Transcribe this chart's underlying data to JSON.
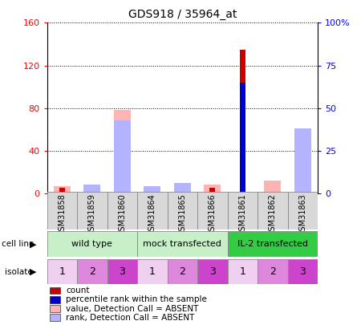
{
  "title": "GDS918 / 35964_at",
  "samples": [
    "GSM31858",
    "GSM31859",
    "GSM31860",
    "GSM31864",
    "GSM31865",
    "GSM31866",
    "GSM31861",
    "GSM31862",
    "GSM31863"
  ],
  "count_values": [
    5,
    0,
    0,
    0,
    0,
    5,
    135,
    0,
    0
  ],
  "percentile_values": [
    0,
    0,
    0,
    0,
    0,
    0,
    65,
    0,
    0
  ],
  "absent_value_values": [
    7,
    3,
    78,
    3,
    4,
    8,
    0,
    12,
    48
  ],
  "absent_rank_values": [
    0,
    5,
    43,
    4,
    6,
    0,
    0,
    0,
    38
  ],
  "cell_line_groups": [
    {
      "label": "wild type",
      "start": 0,
      "end": 3,
      "color": "#c8f0c8"
    },
    {
      "label": "mock transfected",
      "start": 3,
      "end": 6,
      "color": "#c8f0c8"
    },
    {
      "label": "IL-2 transfected",
      "start": 6,
      "end": 9,
      "color": "#33cc44"
    }
  ],
  "isolate_values": [
    "1",
    "2",
    "3",
    "1",
    "2",
    "3",
    "1",
    "2",
    "3"
  ],
  "isolate_colors": [
    "#f0d0f0",
    "#dd88dd",
    "#cc44cc",
    "#f0d0f0",
    "#dd88dd",
    "#cc44cc",
    "#f0d0f0",
    "#dd88dd",
    "#cc44cc"
  ],
  "ylim_left": [
    0,
    160
  ],
  "ylim_right": [
    0,
    100
  ],
  "yticks_left": [
    0,
    40,
    80,
    120,
    160
  ],
  "yticks_right": [
    0,
    25,
    50,
    75,
    100
  ],
  "yticklabels_right": [
    "0",
    "25",
    "50",
    "75",
    "100%"
  ],
  "count_color": "#cc0000",
  "percentile_color": "#0000cc",
  "absent_value_color": "#ffb3b3",
  "absent_rank_color": "#b3b3ff",
  "bg_color": "#ffffff",
  "legend_items": [
    {
      "color": "#cc0000",
      "label": "count"
    },
    {
      "color": "#0000cc",
      "label": "percentile rank within the sample"
    },
    {
      "color": "#ffb3b3",
      "label": "value, Detection Call = ABSENT"
    },
    {
      "color": "#b3b3ff",
      "label": "rank, Detection Call = ABSENT"
    }
  ]
}
